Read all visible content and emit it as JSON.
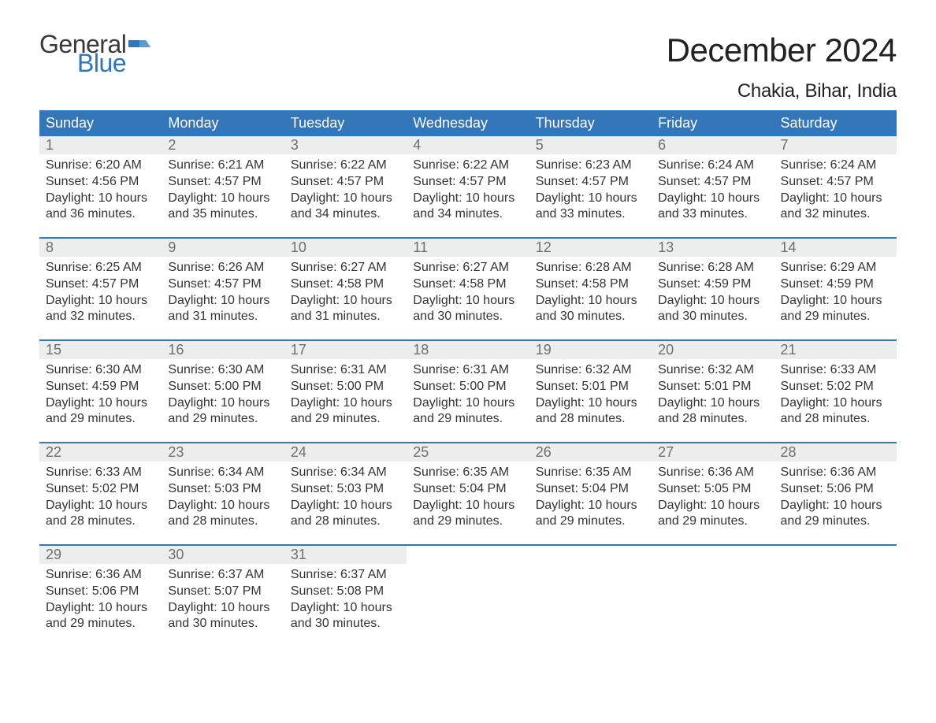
{
  "brand": {
    "word1": "General",
    "word2": "Blue",
    "word1_color": "#3a3a3a",
    "word2_color": "#2f77bb",
    "flag_color": "#2f77bb"
  },
  "title": "December 2024",
  "location": "Chakia, Bihar, India",
  "colors": {
    "header_bg": "#3376b9",
    "header_text": "#ffffff",
    "daynum_bg": "#eceded",
    "daynum_text": "#6f6f6f",
    "body_text": "#333333",
    "week_sep": "#3376b9",
    "page_bg": "#ffffff"
  },
  "typography": {
    "title_fontsize": 42,
    "location_fontsize": 24,
    "weekday_fontsize": 18,
    "daynum_fontsize": 18,
    "body_fontsize": 16
  },
  "weekdays": [
    "Sunday",
    "Monday",
    "Tuesday",
    "Wednesday",
    "Thursday",
    "Friday",
    "Saturday"
  ],
  "weeks": [
    [
      {
        "n": "1",
        "sr": "Sunrise: 6:20 AM",
        "ss": "Sunset: 4:56 PM",
        "d1": "Daylight: 10 hours",
        "d2": "and 36 minutes."
      },
      {
        "n": "2",
        "sr": "Sunrise: 6:21 AM",
        "ss": "Sunset: 4:57 PM",
        "d1": "Daylight: 10 hours",
        "d2": "and 35 minutes."
      },
      {
        "n": "3",
        "sr": "Sunrise: 6:22 AM",
        "ss": "Sunset: 4:57 PM",
        "d1": "Daylight: 10 hours",
        "d2": "and 34 minutes."
      },
      {
        "n": "4",
        "sr": "Sunrise: 6:22 AM",
        "ss": "Sunset: 4:57 PM",
        "d1": "Daylight: 10 hours",
        "d2": "and 34 minutes."
      },
      {
        "n": "5",
        "sr": "Sunrise: 6:23 AM",
        "ss": "Sunset: 4:57 PM",
        "d1": "Daylight: 10 hours",
        "d2": "and 33 minutes."
      },
      {
        "n": "6",
        "sr": "Sunrise: 6:24 AM",
        "ss": "Sunset: 4:57 PM",
        "d1": "Daylight: 10 hours",
        "d2": "and 33 minutes."
      },
      {
        "n": "7",
        "sr": "Sunrise: 6:24 AM",
        "ss": "Sunset: 4:57 PM",
        "d1": "Daylight: 10 hours",
        "d2": "and 32 minutes."
      }
    ],
    [
      {
        "n": "8",
        "sr": "Sunrise: 6:25 AM",
        "ss": "Sunset: 4:57 PM",
        "d1": "Daylight: 10 hours",
        "d2": "and 32 minutes."
      },
      {
        "n": "9",
        "sr": "Sunrise: 6:26 AM",
        "ss": "Sunset: 4:57 PM",
        "d1": "Daylight: 10 hours",
        "d2": "and 31 minutes."
      },
      {
        "n": "10",
        "sr": "Sunrise: 6:27 AM",
        "ss": "Sunset: 4:58 PM",
        "d1": "Daylight: 10 hours",
        "d2": "and 31 minutes."
      },
      {
        "n": "11",
        "sr": "Sunrise: 6:27 AM",
        "ss": "Sunset: 4:58 PM",
        "d1": "Daylight: 10 hours",
        "d2": "and 30 minutes."
      },
      {
        "n": "12",
        "sr": "Sunrise: 6:28 AM",
        "ss": "Sunset: 4:58 PM",
        "d1": "Daylight: 10 hours",
        "d2": "and 30 minutes."
      },
      {
        "n": "13",
        "sr": "Sunrise: 6:28 AM",
        "ss": "Sunset: 4:59 PM",
        "d1": "Daylight: 10 hours",
        "d2": "and 30 minutes."
      },
      {
        "n": "14",
        "sr": "Sunrise: 6:29 AM",
        "ss": "Sunset: 4:59 PM",
        "d1": "Daylight: 10 hours",
        "d2": "and 29 minutes."
      }
    ],
    [
      {
        "n": "15",
        "sr": "Sunrise: 6:30 AM",
        "ss": "Sunset: 4:59 PM",
        "d1": "Daylight: 10 hours",
        "d2": "and 29 minutes."
      },
      {
        "n": "16",
        "sr": "Sunrise: 6:30 AM",
        "ss": "Sunset: 5:00 PM",
        "d1": "Daylight: 10 hours",
        "d2": "and 29 minutes."
      },
      {
        "n": "17",
        "sr": "Sunrise: 6:31 AM",
        "ss": "Sunset: 5:00 PM",
        "d1": "Daylight: 10 hours",
        "d2": "and 29 minutes."
      },
      {
        "n": "18",
        "sr": "Sunrise: 6:31 AM",
        "ss": "Sunset: 5:00 PM",
        "d1": "Daylight: 10 hours",
        "d2": "and 29 minutes."
      },
      {
        "n": "19",
        "sr": "Sunrise: 6:32 AM",
        "ss": "Sunset: 5:01 PM",
        "d1": "Daylight: 10 hours",
        "d2": "and 28 minutes."
      },
      {
        "n": "20",
        "sr": "Sunrise: 6:32 AM",
        "ss": "Sunset: 5:01 PM",
        "d1": "Daylight: 10 hours",
        "d2": "and 28 minutes."
      },
      {
        "n": "21",
        "sr": "Sunrise: 6:33 AM",
        "ss": "Sunset: 5:02 PM",
        "d1": "Daylight: 10 hours",
        "d2": "and 28 minutes."
      }
    ],
    [
      {
        "n": "22",
        "sr": "Sunrise: 6:33 AM",
        "ss": "Sunset: 5:02 PM",
        "d1": "Daylight: 10 hours",
        "d2": "and 28 minutes."
      },
      {
        "n": "23",
        "sr": "Sunrise: 6:34 AM",
        "ss": "Sunset: 5:03 PM",
        "d1": "Daylight: 10 hours",
        "d2": "and 28 minutes."
      },
      {
        "n": "24",
        "sr": "Sunrise: 6:34 AM",
        "ss": "Sunset: 5:03 PM",
        "d1": "Daylight: 10 hours",
        "d2": "and 28 minutes."
      },
      {
        "n": "25",
        "sr": "Sunrise: 6:35 AM",
        "ss": "Sunset: 5:04 PM",
        "d1": "Daylight: 10 hours",
        "d2": "and 29 minutes."
      },
      {
        "n": "26",
        "sr": "Sunrise: 6:35 AM",
        "ss": "Sunset: 5:04 PM",
        "d1": "Daylight: 10 hours",
        "d2": "and 29 minutes."
      },
      {
        "n": "27",
        "sr": "Sunrise: 6:36 AM",
        "ss": "Sunset: 5:05 PM",
        "d1": "Daylight: 10 hours",
        "d2": "and 29 minutes."
      },
      {
        "n": "28",
        "sr": "Sunrise: 6:36 AM",
        "ss": "Sunset: 5:06 PM",
        "d1": "Daylight: 10 hours",
        "d2": "and 29 minutes."
      }
    ],
    [
      {
        "n": "29",
        "sr": "Sunrise: 6:36 AM",
        "ss": "Sunset: 5:06 PM",
        "d1": "Daylight: 10 hours",
        "d2": "and 29 minutes."
      },
      {
        "n": "30",
        "sr": "Sunrise: 6:37 AM",
        "ss": "Sunset: 5:07 PM",
        "d1": "Daylight: 10 hours",
        "d2": "and 30 minutes."
      },
      {
        "n": "31",
        "sr": "Sunrise: 6:37 AM",
        "ss": "Sunset: 5:08 PM",
        "d1": "Daylight: 10 hours",
        "d2": "and 30 minutes."
      },
      {
        "empty": true
      },
      {
        "empty": true
      },
      {
        "empty": true
      },
      {
        "empty": true
      }
    ]
  ]
}
